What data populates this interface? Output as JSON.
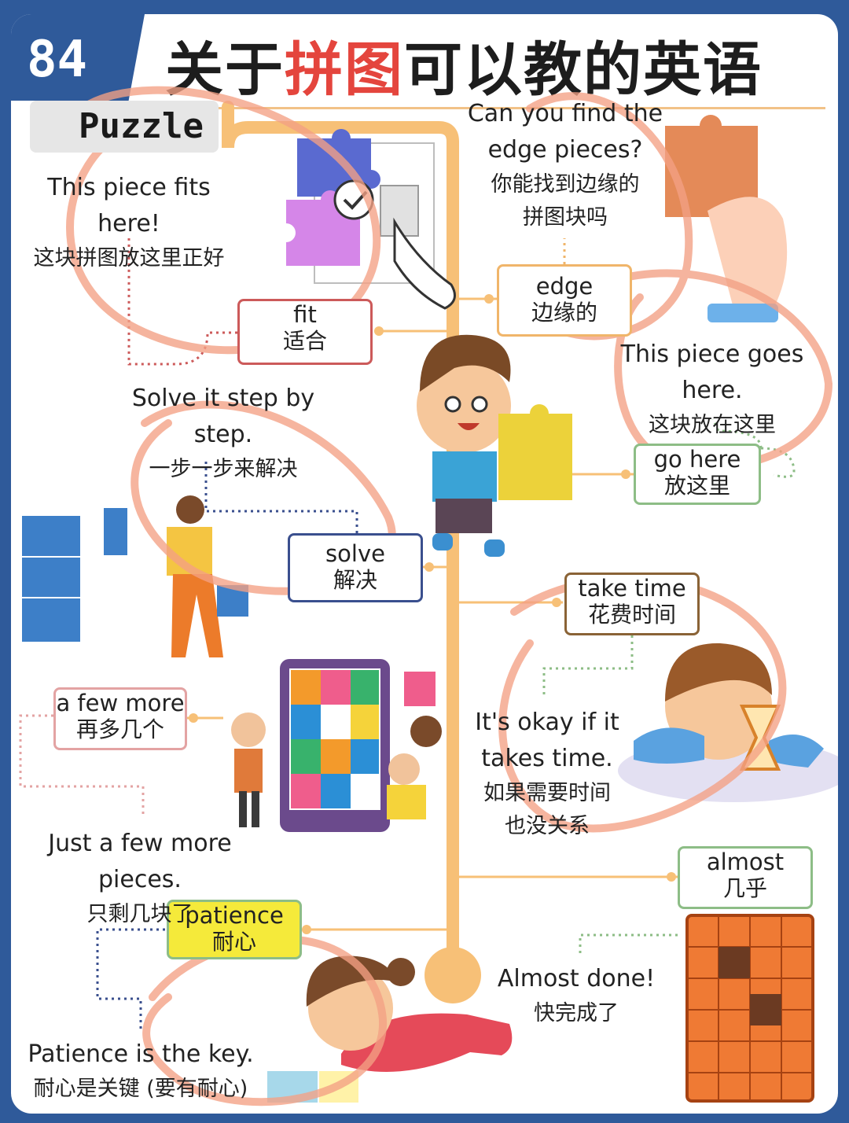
{
  "header": {
    "number": "84",
    "title_prefix": "关于",
    "title_highlight": "拼图",
    "title_suffix": "可以教的英语"
  },
  "topic": {
    "label": "Puzzle"
  },
  "colors": {
    "page_border": "#2f5a9a",
    "trunk": "#f7c077",
    "title_highlight": "#e4453d",
    "box_red": "#cc5a5a",
    "box_orange": "#f0b56a",
    "box_blue": "#3a4f8e",
    "box_green": "#8dbd86",
    "box_brown": "#8a6336",
    "box_pink": "#e3a3a3",
    "patience_fill": "#f5ea3a",
    "scribble": "#f3a084"
  },
  "vocab": [
    {
      "id": "fit",
      "en": "fit",
      "zh": "适合",
      "example_en": "This piece fits here!",
      "example_zh": "这块拼图放这里正好"
    },
    {
      "id": "edge",
      "en": "edge",
      "zh": "边缘的",
      "example_en": "Can you find the",
      "example_en2": "edge pieces?",
      "example_zh": "你能找到边缘的",
      "example_zh2": "拼图块吗"
    },
    {
      "id": "go_here",
      "en": "go here",
      "zh": "放这里",
      "example_en": "This piece goes here.",
      "example_zh": "这块放在这里"
    },
    {
      "id": "solve",
      "en": "solve",
      "zh": "解决",
      "example_en": "Solve it step by step.",
      "example_zh": "一步一步来解决"
    },
    {
      "id": "take_time",
      "en": "take time",
      "zh": "花费时间",
      "example_en": "It's okay if it",
      "example_en2": "takes time.",
      "example_zh": "如果需要时间",
      "example_zh2": "也没关系"
    },
    {
      "id": "a_few_more",
      "en": "a few more",
      "zh": "再多几个",
      "example_en": "Just a few more pieces.",
      "example_zh": "只剩几块了"
    },
    {
      "id": "almost",
      "en": "almost",
      "zh": "几乎",
      "example_en": "Almost done!",
      "example_zh": "快完成了"
    },
    {
      "id": "patience",
      "en": "patience",
      "zh": "耐心",
      "example_en": "Patience is the key.",
      "example_zh": "耐心是关键 (要有耐心)"
    }
  ]
}
